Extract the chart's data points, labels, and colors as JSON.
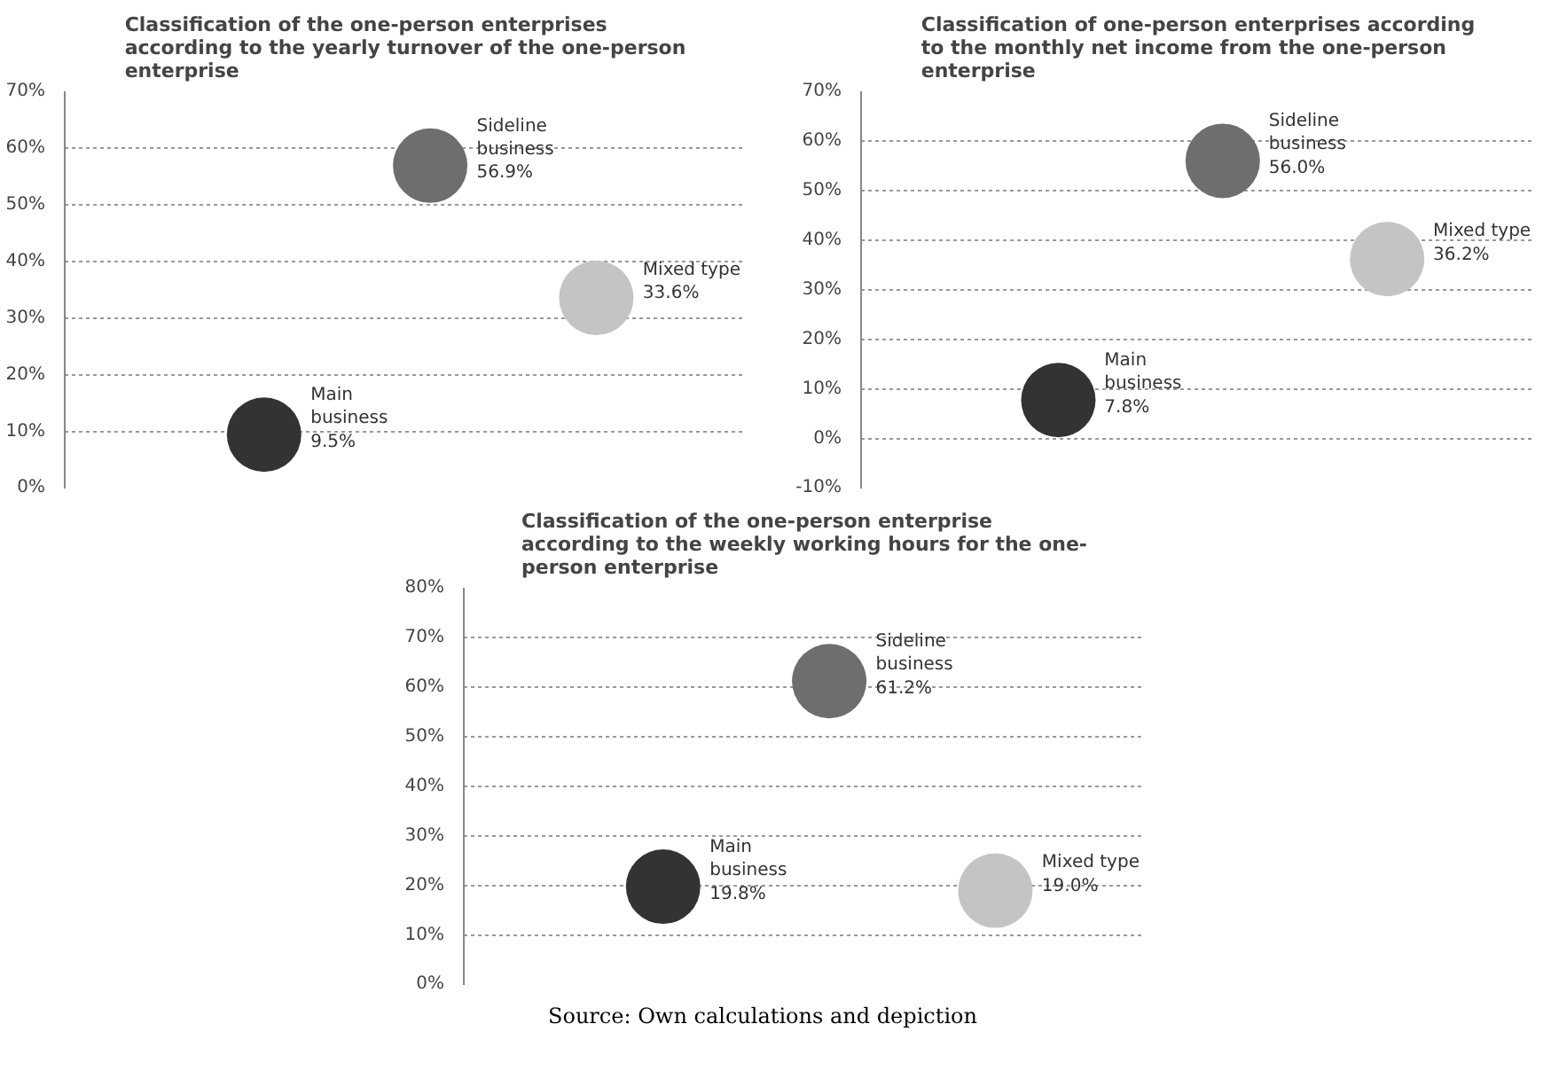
{
  "chart_data": [
    {
      "type": "bubble",
      "title": "Classification of the one-person enterprises according to the yearly turnover of the one-person enterprise",
      "categories": [
        null,
        null,
        null
      ],
      "ylim": [
        0,
        70
      ],
      "yticks": [
        {
          "value": 0,
          "label": "0%"
        },
        {
          "value": 10,
          "label": "10%"
        },
        {
          "value": 20,
          "label": "20%"
        },
        {
          "value": 30,
          "label": "30%"
        },
        {
          "value": 40,
          "label": "40%"
        },
        {
          "value": 50,
          "label": "50%"
        },
        {
          "value": 60,
          "label": "60%"
        },
        {
          "value": 70,
          "label": "70%"
        }
      ],
      "grid": "y",
      "series": [
        {
          "name": "Main business",
          "color": "#333333",
          "values": [
            9.5,
            null,
            null
          ],
          "sizes": [
            1,
            null,
            null
          ],
          "value_labels": [
            "9.5%",
            null,
            null
          ]
        },
        {
          "name": "Sideline business",
          "color": "#6e6e6e",
          "values": [
            null,
            56.9,
            null
          ],
          "sizes": [
            null,
            1,
            null
          ],
          "value_labels": [
            null,
            "56.9%",
            null
          ]
        },
        {
          "name": "Mixed type",
          "color": "#c4c4c4",
          "values": [
            null,
            null,
            33.6
          ],
          "sizes": [
            null,
            null,
            1
          ],
          "value_labels": [
            null,
            null,
            "33.6%"
          ]
        }
      ]
    },
    {
      "type": "bubble",
      "title": "Classification of one-person enterprises according to the monthly net income from the one-person enterprise",
      "categories": [
        null,
        null,
        null
      ],
      "ylim": [
        -10,
        70
      ],
      "yticks": [
        {
          "value": -10,
          "label": "-10%"
        },
        {
          "value": 0,
          "label": "0%"
        },
        {
          "value": 10,
          "label": "10%"
        },
        {
          "value": 20,
          "label": "20%"
        },
        {
          "value": 30,
          "label": "30%"
        },
        {
          "value": 40,
          "label": "40%"
        },
        {
          "value": 50,
          "label": "50%"
        },
        {
          "value": 60,
          "label": "60%"
        },
        {
          "value": 70,
          "label": "70%"
        }
      ],
      "grid": "y",
      "series": [
        {
          "name": "Main business",
          "color": "#333333",
          "values": [
            7.8,
            null,
            null
          ],
          "sizes": [
            1,
            null,
            null
          ],
          "value_labels": [
            "7.8%",
            null,
            null
          ]
        },
        {
          "name": "Sideline business",
          "color": "#6e6e6e",
          "values": [
            null,
            56.0,
            null
          ],
          "sizes": [
            null,
            1,
            null
          ],
          "value_labels": [
            null,
            "56.0%",
            null
          ]
        },
        {
          "name": "Mixed type",
          "color": "#c4c4c4",
          "values": [
            null,
            null,
            36.2
          ],
          "sizes": [
            null,
            null,
            1
          ],
          "value_labels": [
            null,
            null,
            "36.2%"
          ]
        }
      ]
    },
    {
      "type": "bubble",
      "title": "Classification of the one-person enterprise according to the weekly working hours for the one-person enterprise",
      "categories": [
        null,
        null,
        null
      ],
      "ylim": [
        0,
        80
      ],
      "yticks": [
        {
          "value": 0,
          "label": "0%"
        },
        {
          "value": 10,
          "label": "10%"
        },
        {
          "value": 20,
          "label": "20%"
        },
        {
          "value": 30,
          "label": "30%"
        },
        {
          "value": 40,
          "label": "40%"
        },
        {
          "value": 50,
          "label": "50%"
        },
        {
          "value": 60,
          "label": "60%"
        },
        {
          "value": 70,
          "label": "70%"
        },
        {
          "value": 80,
          "label": "80%"
        }
      ],
      "grid": "y",
      "annotations": [
        "Source: Own calculations and depiction"
      ],
      "series": [
        {
          "name": "Main business",
          "color": "#333333",
          "values": [
            19.8,
            null,
            null
          ],
          "sizes": [
            1,
            null,
            null
          ],
          "value_labels": [
            "19.8%",
            null,
            null
          ]
        },
        {
          "name": "Sideline business",
          "color": "#6e6e6e",
          "values": [
            null,
            61.2,
            null
          ],
          "sizes": [
            null,
            1,
            null
          ],
          "value_labels": [
            null,
            "61.2%",
            null
          ]
        },
        {
          "name": "Mixed type",
          "color": "#c4c4c4",
          "values": [
            null,
            null,
            19.0
          ],
          "sizes": [
            null,
            null,
            1
          ],
          "value_labels": [
            null,
            null,
            "19.0%"
          ]
        }
      ]
    }
  ]
}
